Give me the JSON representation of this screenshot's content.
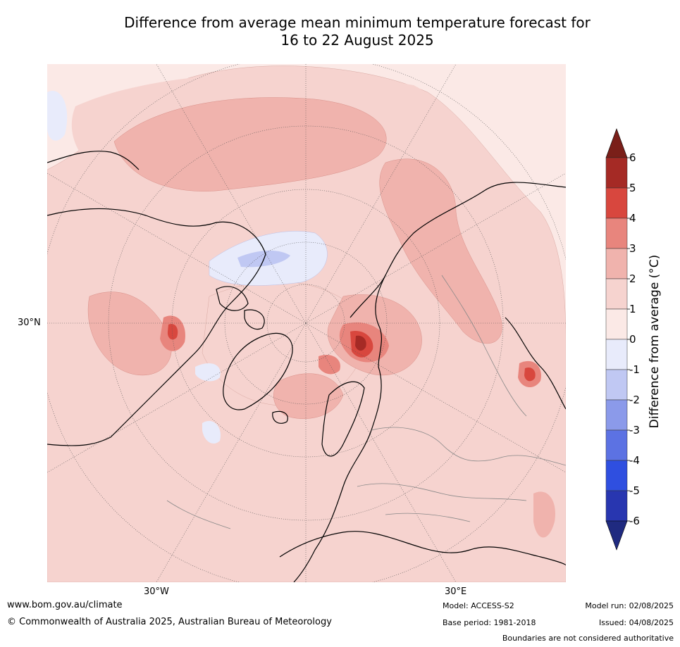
{
  "title_line1": "Difference from average mean minimum temperature forecast for",
  "title_line2": "16 to 22 August 2025",
  "axis_labels": {
    "lat": "30°N",
    "lon_w": "30°W",
    "lon_e": "30°E"
  },
  "colorbar": {
    "label": "Difference from average (°C)",
    "ticks": [
      "6",
      "5",
      "4",
      "3",
      "2",
      "1",
      "0",
      "-1",
      "-2",
      "-3",
      "-4",
      "-5",
      "-6"
    ],
    "colors_top_to_bottom": [
      "#a52a25",
      "#d8473e",
      "#e8857d",
      "#f0b3ad",
      "#f6d3cf",
      "#fbe9e6",
      "#e8ebfb",
      "#c0c8f3",
      "#8b9aea",
      "#5c72e3",
      "#2f4fe0",
      "#2836b0"
    ],
    "over_color": "#7a1f19",
    "under_color": "#1f2a80"
  },
  "footer": {
    "website": "www.bom.gov.au/climate",
    "copyright": "© Commonwealth of Australia 2025, Australian Bureau of Meteorology",
    "model": "Model: ACCESS-S2",
    "base_period": "Base period: 1981-2018",
    "model_run": "Model run: 02/08/2025",
    "issued": "Issued: 04/08/2025",
    "disclaimer": "Boundaries are not considered authoritative"
  }
}
